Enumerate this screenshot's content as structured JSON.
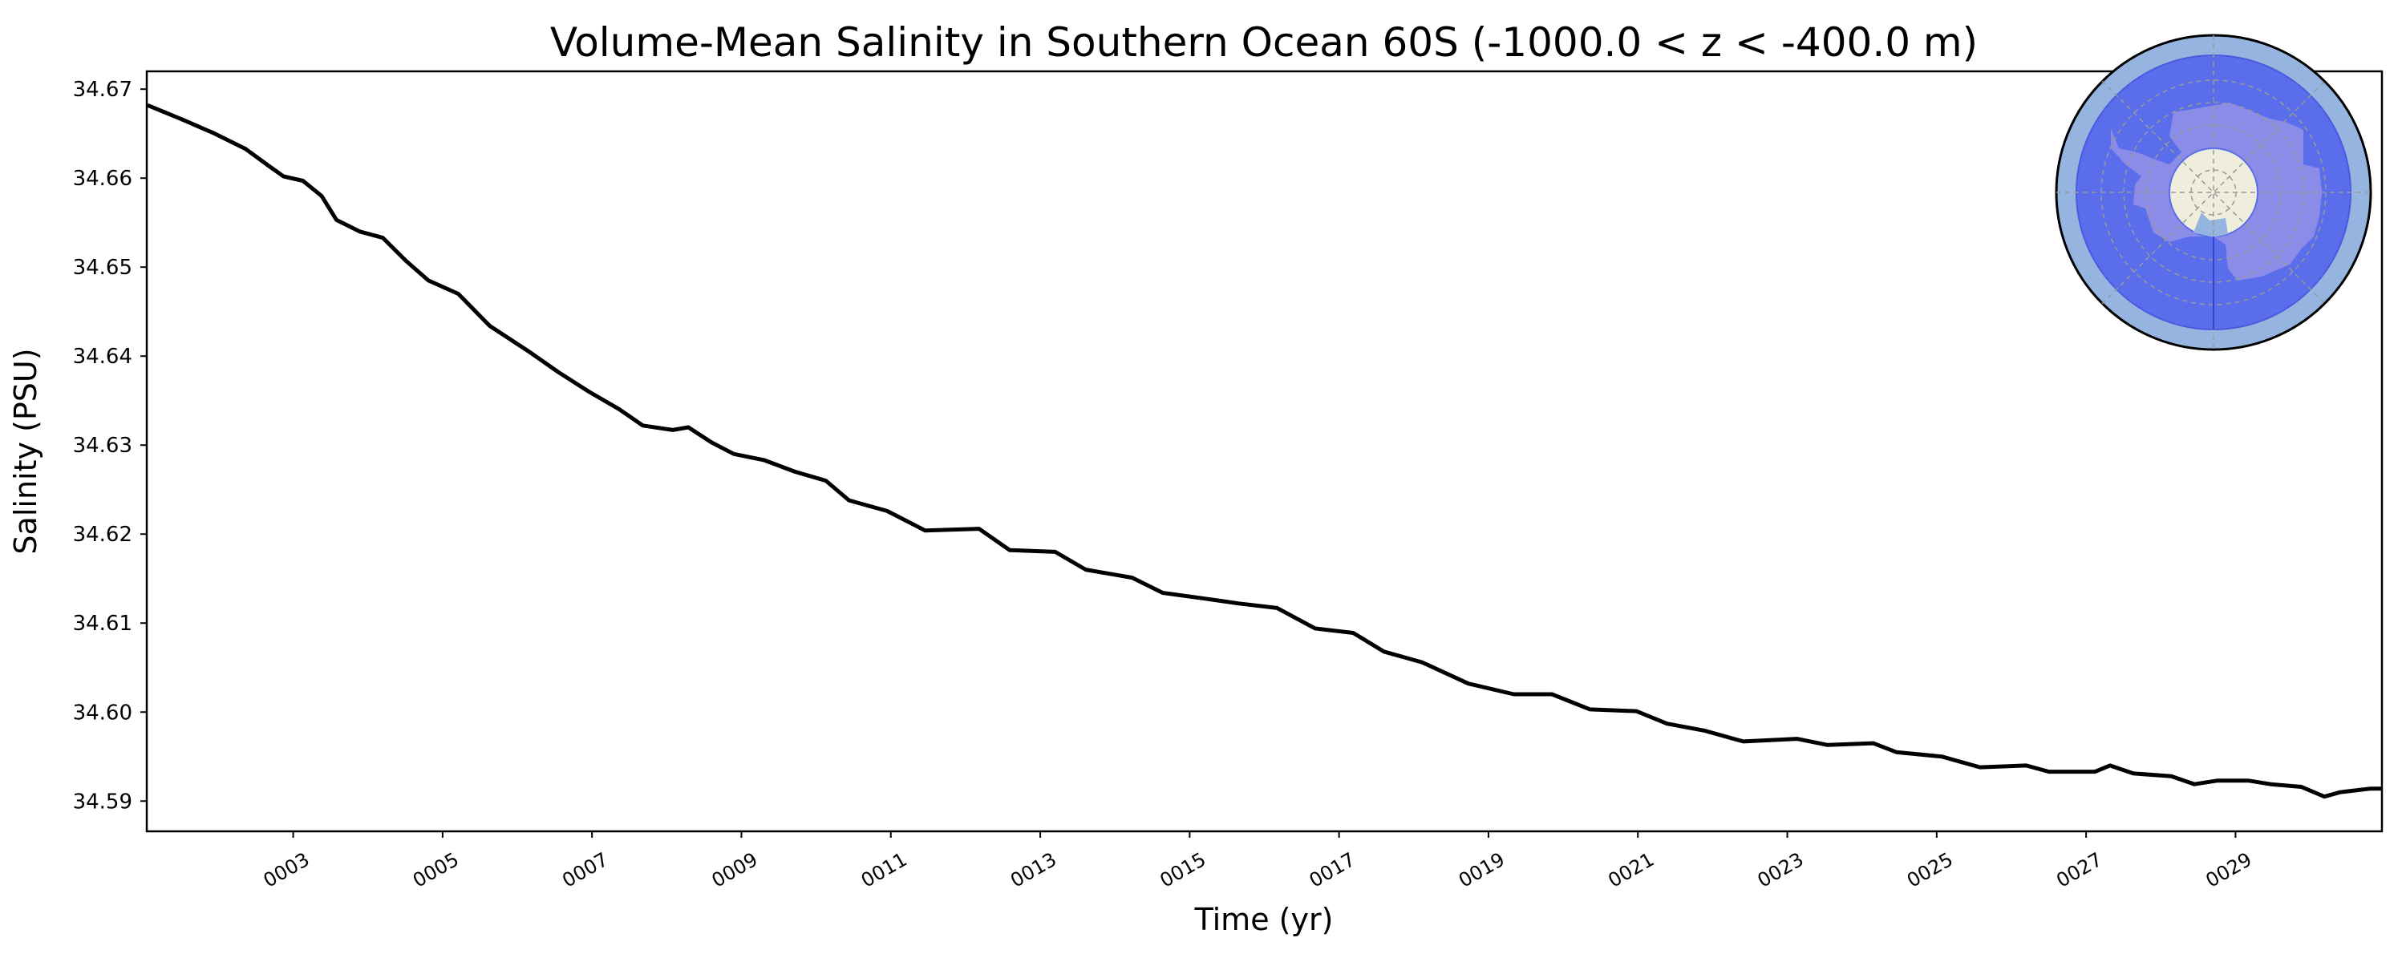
{
  "chart_data": {
    "type": "line",
    "title": "Volume-Mean Salinity in Southern Ocean 60S (-1000.0 < z < -400.0 m)",
    "xlabel": "Time (yr)",
    "ylabel": "Salinity (PSU)",
    "xlim": [
      1.04,
      30.96
    ],
    "ylim": [
      34.5866,
      34.672
    ],
    "grid": false,
    "xticks": [
      3,
      5,
      7,
      9,
      11,
      13,
      15,
      17,
      19,
      21,
      23,
      25,
      27,
      29
    ],
    "xtick_labels": [
      "0003",
      "0005",
      "0007",
      "0009",
      "0011",
      "0013",
      "0015",
      "0017",
      "0019",
      "0021",
      "0023",
      "0025",
      "0027",
      "0029"
    ],
    "yticks": [
      34.59,
      34.6,
      34.61,
      34.62,
      34.63,
      34.64,
      34.65,
      34.66,
      34.67
    ],
    "ytick_labels": [
      "34.59",
      "34.60",
      "34.61",
      "34.62",
      "34.63",
      "34.64",
      "34.65",
      "34.66",
      "34.67"
    ],
    "series": [
      {
        "name": "Salinity",
        "color": "#000000",
        "x": [
          1.05,
          1.54,
          1.95,
          2.36,
          2.67,
          2.87,
          3.13,
          3.38,
          3.58,
          3.89,
          4.2,
          4.51,
          4.81,
          5.21,
          5.63,
          6.14,
          6.55,
          6.96,
          7.37,
          7.68,
          8.08,
          8.29,
          8.6,
          8.9,
          9.31,
          9.72,
          10.13,
          10.44,
          10.95,
          11.46,
          12.18,
          12.59,
          13.2,
          13.61,
          14.23,
          14.64,
          15.25,
          15.66,
          16.17,
          16.68,
          17.19,
          17.6,
          18.11,
          18.73,
          19.34,
          19.85,
          20.36,
          20.98,
          21.39,
          21.9,
          22.41,
          23.13,
          23.54,
          24.15,
          24.46,
          25.07,
          25.58,
          26.2,
          26.5,
          27.12,
          27.32,
          27.63,
          28.14,
          28.45,
          28.76,
          29.17,
          29.47,
          29.88,
          30.19,
          30.4,
          30.81,
          30.96
        ],
        "y": [
          34.6682,
          34.6665,
          34.665,
          34.6633,
          34.6614,
          34.6602,
          34.6597,
          34.658,
          34.6553,
          34.654,
          34.6533,
          34.6507,
          34.6485,
          34.647,
          34.6434,
          34.6406,
          34.6382,
          34.636,
          34.634,
          34.6322,
          34.6317,
          34.632,
          34.6303,
          34.629,
          34.6283,
          34.627,
          34.626,
          34.6238,
          34.6226,
          34.6204,
          34.6206,
          34.6182,
          34.618,
          34.616,
          34.6151,
          34.6134,
          34.6127,
          34.6122,
          34.6117,
          34.6094,
          34.6089,
          34.6068,
          34.6056,
          34.6032,
          34.602,
          34.602,
          34.6003,
          34.6001,
          34.5987,
          34.5979,
          34.5967,
          34.597,
          34.5963,
          34.5965,
          34.5955,
          34.595,
          34.5938,
          34.594,
          34.5933,
          34.5933,
          34.594,
          34.5931,
          34.5928,
          34.5919,
          34.5923,
          34.5923,
          34.5919,
          34.5916,
          34.5905,
          34.591,
          34.5914,
          34.5914
        ]
      }
    ],
    "inset_map": {
      "description_icon": "south-polar-map-icon",
      "colors": {
        "ocean_outer": "#95b5e0",
        "region": "#5a6eeb",
        "land": "#8b8be8",
        "pole_cap": "#efeedd"
      }
    }
  }
}
